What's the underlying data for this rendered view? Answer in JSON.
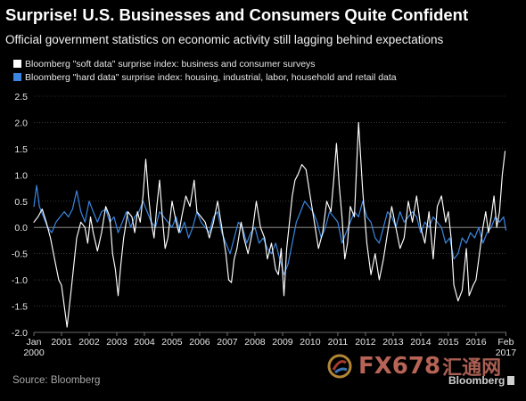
{
  "header": {
    "title": "Surprise! U.S. Businesses and Consumers Quite Confident",
    "subtitle": "Official government statistics on economic activity still lagging behind expectations"
  },
  "legend": {
    "soft_label": "Bloomberg \"soft data\" surprise index: business and consumer surveys",
    "hard_label": "Bloomberg \"hard data\" surprise index: housing, industrial, labor, household and retail data"
  },
  "footer": {
    "source": "Source: Bloomberg",
    "watermark": "FX678",
    "watermark_cjk": "汇通网",
    "brand": "Bloomberg"
  },
  "colors": {
    "background": "#000000",
    "soft_series": "#ffffff",
    "hard_series": "#3a86e0",
    "grid": "#5a5a5a",
    "zero_line": "#a0a0a0",
    "tick_text": "#e6e6e6"
  },
  "chart_data": {
    "type": "line",
    "title": "Surprise! U.S. Businesses and Consumers Quite Confident",
    "ylim": [
      -2.0,
      2.5
    ],
    "yticks": [
      "2.5",
      "2.0",
      "1.5",
      "1.0",
      "0.5",
      "0.0",
      "-0.5",
      "-1.0",
      "-1.5",
      "-2.0"
    ],
    "ytick_values": [
      2.5,
      2.0,
      1.5,
      1.0,
      0.5,
      0.0,
      -0.5,
      -1.0,
      -1.5,
      -2.0
    ],
    "xlim": [
      2000.0,
      2017.1
    ],
    "xticks": [
      {
        "x": 2000.0,
        "label": "Jan",
        "label2": "2000"
      },
      {
        "x": 2001.0,
        "label": "2001"
      },
      {
        "x": 2002.0,
        "label": "2002"
      },
      {
        "x": 2003.0,
        "label": "2003"
      },
      {
        "x": 2004.0,
        "label": "2004"
      },
      {
        "x": 2005.0,
        "label": "2005"
      },
      {
        "x": 2006.0,
        "label": "2006"
      },
      {
        "x": 2007.0,
        "label": "2007"
      },
      {
        "x": 2008.0,
        "label": "2008"
      },
      {
        "x": 2009.0,
        "label": "2009"
      },
      {
        "x": 2010.0,
        "label": "2010"
      },
      {
        "x": 2011.0,
        "label": "2011"
      },
      {
        "x": 2012.0,
        "label": "2012"
      },
      {
        "x": 2013.0,
        "label": "2013"
      },
      {
        "x": 2014.0,
        "label": "2014"
      },
      {
        "x": 2015.0,
        "label": "2015"
      },
      {
        "x": 2016.0,
        "label": "2016"
      },
      {
        "x": 2017.08,
        "label": "Feb",
        "label2": "2017"
      }
    ],
    "grid": true,
    "legend_position": "top-left",
    "series": [
      {
        "name": "Bloomberg \"soft data\" surprise index: business and consumer surveys",
        "color": "#ffffff",
        "x": [
          2000.0,
          2000.15,
          2000.3,
          2000.45,
          2000.6,
          2000.75,
          2000.9,
          2001.0,
          2001.1,
          2001.2,
          2001.35,
          2001.45,
          2001.55,
          2001.7,
          2001.85,
          2001.95,
          2002.05,
          2002.15,
          2002.3,
          2002.45,
          2002.6,
          2002.75,
          2002.85,
          2002.95,
          2003.05,
          2003.15,
          2003.25,
          2003.4,
          2003.55,
          2003.65,
          2003.75,
          2003.85,
          2003.95,
          2004.05,
          2004.15,
          2004.25,
          2004.35,
          2004.45,
          2004.55,
          2004.65,
          2004.75,
          2004.85,
          2005.0,
          2005.15,
          2005.25,
          2005.35,
          2005.5,
          2005.65,
          2005.8,
          2005.9,
          2006.05,
          2006.2,
          2006.35,
          2006.5,
          2006.65,
          2006.8,
          2006.95,
          2007.05,
          2007.15,
          2007.25,
          2007.35,
          2007.5,
          2007.6,
          2007.75,
          2007.9,
          2008.05,
          2008.2,
          2008.35,
          2008.45,
          2008.6,
          2008.75,
          2008.85,
          2008.95,
          2009.05,
          2009.15,
          2009.25,
          2009.35,
          2009.45,
          2009.55,
          2009.7,
          2009.85,
          2010.0,
          2010.15,
          2010.3,
          2010.45,
          2010.6,
          2010.75,
          2010.85,
          2010.95,
          2011.05,
          2011.15,
          2011.25,
          2011.35,
          2011.45,
          2011.6,
          2011.75,
          2011.9,
          2012.05,
          2012.2,
          2012.35,
          2012.5,
          2012.65,
          2012.8,
          2012.95,
          2013.1,
          2013.25,
          2013.4,
          2013.55,
          2013.7,
          2013.85,
          2014.0,
          2014.15,
          2014.3,
          2014.45,
          2014.6,
          2014.75,
          2014.9,
          2015.0,
          2015.1,
          2015.2,
          2015.35,
          2015.5,
          2015.65,
          2015.75,
          2015.9,
          2016.0,
          2016.15,
          2016.25,
          2016.35,
          2016.45,
          2016.55,
          2016.65,
          2016.75,
          2016.85,
          2016.95,
          2017.05
        ],
        "y": [
          0.1,
          0.2,
          0.35,
          0.1,
          -0.2,
          -0.6,
          -1.0,
          -1.1,
          -1.5,
          -1.9,
          -1.2,
          -0.7,
          -0.2,
          0.1,
          0.0,
          -0.3,
          0.2,
          -0.1,
          -0.45,
          -0.1,
          0.4,
          0.2,
          -0.5,
          -0.8,
          -1.3,
          -0.7,
          -0.2,
          0.3,
          0.2,
          -0.1,
          0.3,
          0.1,
          0.6,
          1.3,
          0.6,
          0.1,
          -0.2,
          0.4,
          0.9,
          0.2,
          -0.4,
          -0.2,
          0.5,
          0.1,
          -0.1,
          0.2,
          0.6,
          0.4,
          0.9,
          0.3,
          0.2,
          0.1,
          -0.2,
          0.1,
          0.5,
          0.0,
          -0.5,
          -1.0,
          -1.05,
          -0.6,
          -0.4,
          0.1,
          -0.2,
          -0.5,
          -0.1,
          0.5,
          0.0,
          -0.2,
          -0.6,
          -0.3,
          -0.8,
          -0.9,
          -0.4,
          -1.3,
          -0.4,
          0.1,
          0.6,
          0.9,
          1.0,
          1.2,
          1.1,
          0.6,
          0.1,
          -0.4,
          -0.1,
          0.5,
          0.3,
          0.9,
          1.6,
          0.8,
          0.2,
          -0.6,
          -0.3,
          0.4,
          0.2,
          2.0,
          0.7,
          -0.3,
          -0.9,
          -0.5,
          -1.0,
          -0.6,
          -0.1,
          0.4,
          0.0,
          -0.4,
          -0.2,
          0.5,
          0.1,
          0.6,
          0.0,
          -0.3,
          0.3,
          -0.6,
          0.4,
          0.6,
          0.1,
          0.3,
          -0.2,
          -1.1,
          -1.4,
          -1.2,
          -0.4,
          -1.3,
          -1.1,
          -1.0,
          -0.4,
          0.0,
          0.3,
          -0.1,
          0.2,
          0.6,
          0.0,
          0.3,
          1.0,
          1.45
        ]
      },
      {
        "name": "Bloomberg \"hard data\" surprise index: housing, industrial, labor, household and retail data",
        "color": "#3a86e0",
        "x": [
          2000.0,
          2000.1,
          2000.2,
          2000.35,
          2000.5,
          2000.65,
          2000.8,
          2000.95,
          2001.1,
          2001.25,
          2001.4,
          2001.55,
          2001.7,
          2001.85,
          2002.0,
          2002.15,
          2002.3,
          2002.45,
          2002.6,
          2002.75,
          2002.9,
          2003.05,
          2003.2,
          2003.35,
          2003.5,
          2003.65,
          2003.8,
          2003.95,
          2004.1,
          2004.25,
          2004.4,
          2004.55,
          2004.7,
          2004.85,
          2005.0,
          2005.15,
          2005.3,
          2005.45,
          2005.6,
          2005.75,
          2005.9,
          2006.05,
          2006.2,
          2006.35,
          2006.5,
          2006.65,
          2006.8,
          2006.95,
          2007.1,
          2007.25,
          2007.4,
          2007.55,
          2007.7,
          2007.85,
          2008.0,
          2008.15,
          2008.3,
          2008.45,
          2008.6,
          2008.75,
          2008.9,
          2009.05,
          2009.2,
          2009.35,
          2009.5,
          2009.65,
          2009.8,
          2009.95,
          2010.1,
          2010.25,
          2010.4,
          2010.55,
          2010.7,
          2010.85,
          2011.0,
          2011.15,
          2011.3,
          2011.45,
          2011.6,
          2011.75,
          2011.9,
          2012.05,
          2012.2,
          2012.35,
          2012.5,
          2012.65,
          2012.8,
          2012.95,
          2013.1,
          2013.25,
          2013.4,
          2013.55,
          2013.7,
          2013.85,
          2014.0,
          2014.15,
          2014.3,
          2014.45,
          2014.6,
          2014.75,
          2014.9,
          2015.05,
          2015.2,
          2015.35,
          2015.5,
          2015.65,
          2015.8,
          2015.95,
          2016.1,
          2016.25,
          2016.4,
          2016.55,
          2016.7,
          2016.85,
          2017.0,
          2017.08
        ],
        "y": [
          0.4,
          0.8,
          0.4,
          0.2,
          0.0,
          -0.1,
          0.1,
          0.2,
          0.3,
          0.2,
          0.35,
          0.7,
          0.3,
          0.1,
          0.5,
          0.3,
          0.1,
          0.3,
          0.35,
          0.1,
          0.2,
          -0.1,
          0.1,
          0.3,
          0.0,
          0.2,
          0.3,
          0.5,
          0.3,
          0.1,
          0.0,
          0.3,
          0.2,
          0.1,
          0.0,
          0.2,
          -0.1,
          0.1,
          -0.2,
          0.0,
          0.3,
          0.1,
          0.0,
          -0.1,
          0.2,
          0.3,
          -0.1,
          -0.3,
          -0.5,
          -0.2,
          0.1,
          0.0,
          -0.3,
          -0.1,
          0.0,
          -0.3,
          -0.2,
          -0.4,
          -0.5,
          -0.3,
          -0.6,
          -0.9,
          -0.7,
          -0.3,
          0.1,
          0.3,
          0.5,
          0.4,
          0.3,
          0.1,
          -0.2,
          0.0,
          0.3,
          0.2,
          0.1,
          -0.3,
          -0.1,
          0.1,
          0.3,
          0.2,
          0.5,
          0.2,
          0.1,
          -0.2,
          -0.3,
          0.0,
          0.3,
          0.2,
          0.0,
          0.3,
          0.1,
          0.2,
          0.3,
          0.2,
          -0.1,
          0.1,
          0.0,
          0.2,
          0.1,
          0.0,
          -0.3,
          -0.2,
          -0.6,
          -0.5,
          -0.2,
          -0.3,
          -0.1,
          -0.2,
          0.0,
          -0.3,
          -0.1,
          0.0,
          0.2,
          0.1,
          0.2,
          -0.05
        ]
      }
    ]
  }
}
